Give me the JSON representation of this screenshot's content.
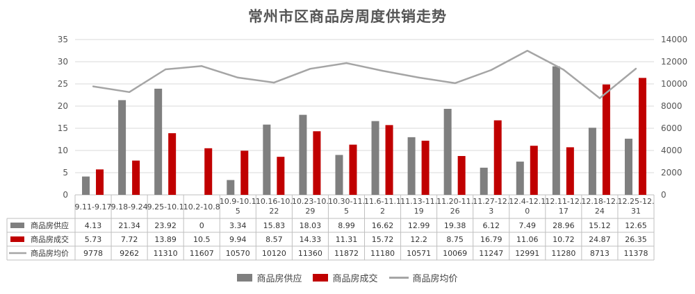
{
  "chart_data": {
    "type": "bar",
    "title": "常州市区商品房周度供销走势",
    "categories": [
      "9.11-9.17",
      "9.18-9.24",
      "9.25-10.1",
      "10.2-10.8",
      "10.9-10.15",
      "10.16-10.22",
      "10.23-10.29",
      "10.30-11.5",
      "11.6-11.12",
      "11.13-11.19",
      "11.20-11.26",
      "11.27-12.3",
      "12.4-12.10",
      "12.11-12.17",
      "12.18-12.24",
      "12.25-12.31"
    ],
    "category_display": [
      [
        "9.11-9.17"
      ],
      [
        "9.18-9.24"
      ],
      [
        "9.25-10.1"
      ],
      [
        "10.2-10.8"
      ],
      [
        "10.9-10.1",
        "5"
      ],
      [
        "10.16-10.",
        "22"
      ],
      [
        "10.23-10.",
        "29"
      ],
      [
        "10.30-11.",
        "5"
      ],
      [
        "11.6-11.1",
        "2"
      ],
      [
        "11.13-11.",
        "19"
      ],
      [
        "11.20-11.",
        "26"
      ],
      [
        "11.27-12.",
        "3"
      ],
      [
        "12.4-12.1",
        "0"
      ],
      [
        "12.11-12.",
        "17"
      ],
      [
        "12.18-12.",
        "24"
      ],
      [
        "12.25-12.",
        "31"
      ]
    ],
    "series": [
      {
        "name": "商品房供应",
        "kind": "bar",
        "axis": "left",
        "color": "#7f7f7f",
        "values": [
          4.13,
          21.34,
          23.92,
          0,
          3.34,
          15.83,
          18.03,
          8.99,
          16.62,
          12.99,
          19.38,
          6.12,
          7.49,
          28.96,
          15.12,
          12.65
        ],
        "display": [
          "4.13",
          "21.34",
          "23.92",
          "0",
          "3.34",
          "15.83",
          "18.03",
          "8.99",
          "16.62",
          "12.99",
          "19.38",
          "6.12",
          "7.49",
          "28.96",
          "15.12",
          "12.65"
        ]
      },
      {
        "name": "商品房成交",
        "kind": "bar",
        "axis": "left",
        "color": "#c00000",
        "values": [
          5.73,
          7.72,
          13.89,
          10.5,
          9.94,
          8.57,
          14.33,
          11.31,
          15.72,
          12.2,
          8.75,
          16.79,
          11.06,
          10.72,
          24.87,
          26.35
        ],
        "display": [
          "5.73",
          "7.72",
          "13.89",
          "10.5",
          "9.94",
          "8.57",
          "14.33",
          "11.31",
          "15.72",
          "12.2",
          "8.75",
          "16.79",
          "11.06",
          "10.72",
          "24.87",
          "26.35"
        ]
      },
      {
        "name": "商品房均价",
        "kind": "line",
        "axis": "right",
        "color": "#a5a5a5",
        "values": [
          9778,
          9262,
          11310,
          11607,
          10570,
          10120,
          11360,
          11872,
          11180,
          10571,
          10069,
          11247,
          12991,
          11280,
          8713,
          11378
        ],
        "display": [
          "9778",
          "9262",
          "11310",
          "11607",
          "10570",
          "10120",
          "11360",
          "11872",
          "11180",
          "10571",
          "10069",
          "11247",
          "12991",
          "11280",
          "8713",
          "11378"
        ]
      }
    ],
    "left_axis": {
      "min": 0,
      "max": 35,
      "ticks": [
        0,
        5,
        10,
        15,
        20,
        25,
        30,
        35
      ]
    },
    "right_axis": {
      "min": 0,
      "max": 14000,
      "ticks": [
        0,
        2000,
        4000,
        6000,
        8000,
        10000,
        12000,
        14000
      ]
    },
    "gridlines": true,
    "legend_position": "bottom",
    "data_table": true
  }
}
